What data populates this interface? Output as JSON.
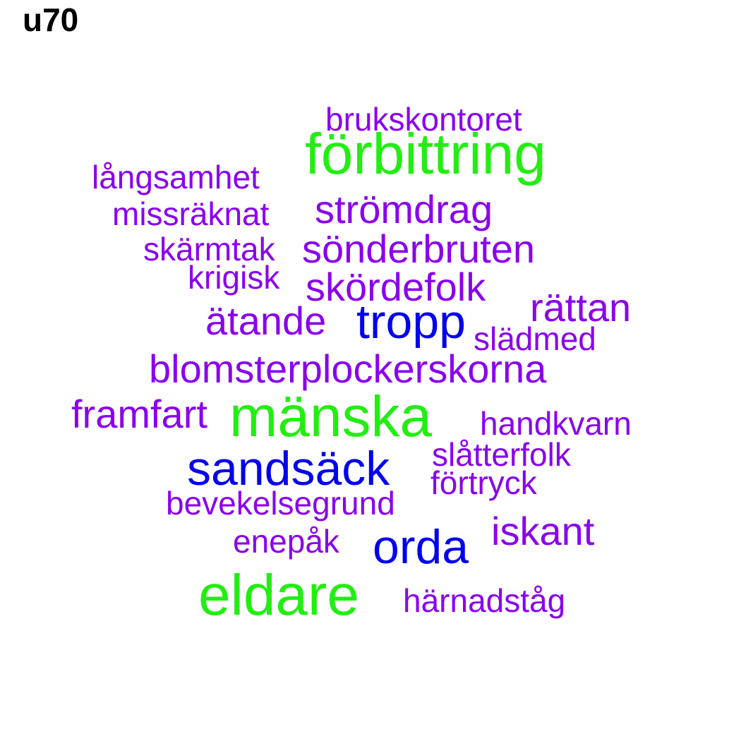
{
  "title": "u70",
  "colors": {
    "large": "#22ee11",
    "medium": "#0000ee",
    "small": "#8a00ee"
  },
  "words": {
    "brukskontoret": "brukskontoret",
    "forbittring": "förbittring",
    "langsamhet": "långsamhet",
    "missraknat": "missräknat",
    "stromdrag": "strömdrag",
    "skarmtak": "skärmtak",
    "sonderbruten": "sönderbruten",
    "krigisk": "krigisk",
    "skordefolk": "skördefolk",
    "rattan": "rättan",
    "atande": "ätande",
    "tropp": "tropp",
    "sladmed": "slädmed",
    "blomsterplockerskorna": "blomsterplockerskorna",
    "framfart": "framfart",
    "manska": "mänska",
    "handkvarn": "handkvarn",
    "sandsack": "sandsäck",
    "slatterfolk": "slåtterfolk",
    "fortryck": "förtryck",
    "bevekelsegrund": "bevekelsegrund",
    "iskant": "iskant",
    "enepak": "enepåk",
    "orda": "orda",
    "eldare": "eldare",
    "harnadstag": "härnadståg"
  }
}
